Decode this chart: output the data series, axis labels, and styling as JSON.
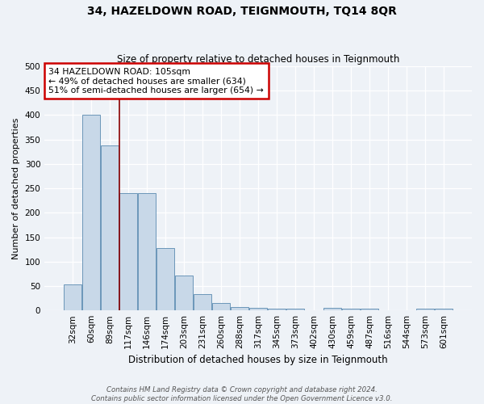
{
  "title": "34, HAZELDOWN ROAD, TEIGNMOUTH, TQ14 8QR",
  "subtitle": "Size of property relative to detached houses in Teignmouth",
  "xlabel": "Distribution of detached houses by size in Teignmouth",
  "ylabel": "Number of detached properties",
  "categories": [
    "32sqm",
    "60sqm",
    "89sqm",
    "117sqm",
    "146sqm",
    "174sqm",
    "203sqm",
    "231sqm",
    "260sqm",
    "288sqm",
    "317sqm",
    "345sqm",
    "373sqm",
    "402sqm",
    "430sqm",
    "459sqm",
    "487sqm",
    "516sqm",
    "544sqm",
    "573sqm",
    "601sqm"
  ],
  "values": [
    53,
    400,
    338,
    240,
    240,
    128,
    72,
    34,
    16,
    7,
    6,
    4,
    3,
    0,
    5,
    4,
    3,
    0,
    0,
    4,
    3
  ],
  "bar_color": "#c8d8e8",
  "bar_edge_color": "#5a8ab0",
  "vline_x": 2.5,
  "vline_color": "#8b0000",
  "annotation_text": "34 HAZELDOWN ROAD: 105sqm\n← 49% of detached houses are smaller (634)\n51% of semi-detached houses are larger (654) →",
  "annotation_box_color": "white",
  "annotation_box_edge": "#cc0000",
  "footer": "Contains HM Land Registry data © Crown copyright and database right 2024.\nContains public sector information licensed under the Open Government Licence v3.0.",
  "ylim": [
    0,
    500
  ],
  "background_color": "#eef2f7",
  "yticks": [
    0,
    50,
    100,
    150,
    200,
    250,
    300,
    350,
    400,
    450,
    500
  ]
}
